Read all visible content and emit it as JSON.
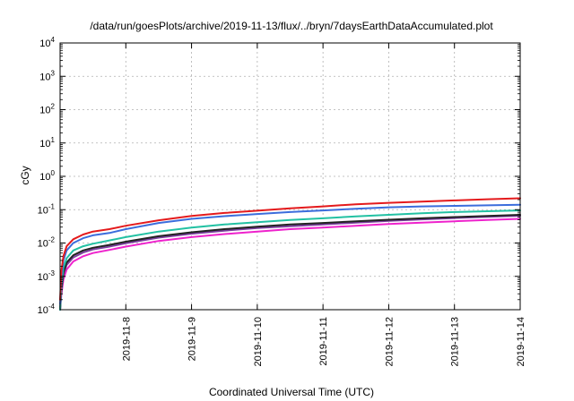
{
  "chart_data": {
    "type": "line",
    "title": "/data/run/goesPlots/archive/2019-11-13/flux/../bryn/7daysEarthDataAccumulated.plot",
    "xlabel": "Coordinated Universal Time (UTC)",
    "ylabel": "cGy",
    "y_scale": "log",
    "ylim": [
      0.0001,
      10000
    ],
    "xlim": [
      0,
      7
    ],
    "y_ticks": [
      {
        "base": "10",
        "exp": "-4",
        "value": 0.0001
      },
      {
        "base": "10",
        "exp": "-3",
        "value": 0.001
      },
      {
        "base": "10",
        "exp": "-2",
        "value": 0.01
      },
      {
        "base": "10",
        "exp": "-1",
        "value": 0.1
      },
      {
        "base": "10",
        "exp": "0",
        "value": 1
      },
      {
        "base": "10",
        "exp": "1",
        "value": 10
      },
      {
        "base": "10",
        "exp": "2",
        "value": 100
      },
      {
        "base": "10",
        "exp": "3",
        "value": 1000
      },
      {
        "base": "10",
        "exp": "4",
        "value": 10000
      }
    ],
    "x_ticks": [
      {
        "label": "2019-11-8",
        "pos": 1
      },
      {
        "label": "2019-11-9",
        "pos": 2
      },
      {
        "label": "2019-11-10",
        "pos": 3
      },
      {
        "label": "2019-11-11",
        "pos": 4
      },
      {
        "label": "2019-11-12",
        "pos": 5
      },
      {
        "label": "2019-11-13",
        "pos": 6
      },
      {
        "label": "2019-11-14",
        "pos": 7
      }
    ],
    "grid": true,
    "x": [
      0.0,
      0.02,
      0.05,
      0.1,
      0.2,
      0.35,
      0.5,
      0.75,
      1.0,
      1.5,
      2.0,
      2.5,
      3.0,
      3.5,
      4.0,
      4.5,
      5.0,
      5.5,
      6.0,
      6.5,
      7.0
    ],
    "series": [
      {
        "color": "#e41a1c",
        "values": [
          0.0002,
          0.0015,
          0.004,
          0.008,
          0.013,
          0.018,
          0.022,
          0.026,
          0.033,
          0.048,
          0.065,
          0.08,
          0.093,
          0.11,
          0.125,
          0.145,
          0.16,
          0.175,
          0.19,
          0.205,
          0.22
        ]
      },
      {
        "color": "#3b6ddc",
        "values": [
          0.00015,
          0.001,
          0.003,
          0.006,
          0.01,
          0.014,
          0.017,
          0.02,
          0.026,
          0.04,
          0.053,
          0.064,
          0.074,
          0.085,
          0.095,
          0.107,
          0.118,
          0.125,
          0.13,
          0.135,
          0.14
        ]
      },
      {
        "color": "#22c1a3",
        "values": [
          0.0001,
          0.0006,
          0.0018,
          0.0035,
          0.006,
          0.008,
          0.0095,
          0.012,
          0.015,
          0.022,
          0.029,
          0.036,
          0.042,
          0.049,
          0.055,
          0.063,
          0.07,
          0.078,
          0.085,
          0.09,
          0.095
        ]
      },
      {
        "color": "#222222",
        "values": [
          0.0001,
          0.00045,
          0.0013,
          0.0026,
          0.0043,
          0.006,
          0.0072,
          0.0088,
          0.011,
          0.016,
          0.021,
          0.026,
          0.031,
          0.036,
          0.04,
          0.045,
          0.05,
          0.055,
          0.06,
          0.065,
          0.07
        ]
      },
      {
        "color": "#7b3f9e",
        "values": [
          0.0001,
          0.0004,
          0.0011,
          0.0022,
          0.0037,
          0.0052,
          0.0064,
          0.0078,
          0.0098,
          0.0145,
          0.019,
          0.0235,
          0.028,
          0.032,
          0.036,
          0.041,
          0.046,
          0.051,
          0.056,
          0.061,
          0.066
        ]
      },
      {
        "color": "#ee22cc",
        "values": [
          0.0001,
          0.0003,
          0.0008,
          0.0016,
          0.0028,
          0.004,
          0.005,
          0.0062,
          0.0078,
          0.0115,
          0.015,
          0.0185,
          0.022,
          0.026,
          0.029,
          0.033,
          0.037,
          0.041,
          0.045,
          0.049,
          0.053
        ]
      }
    ]
  }
}
